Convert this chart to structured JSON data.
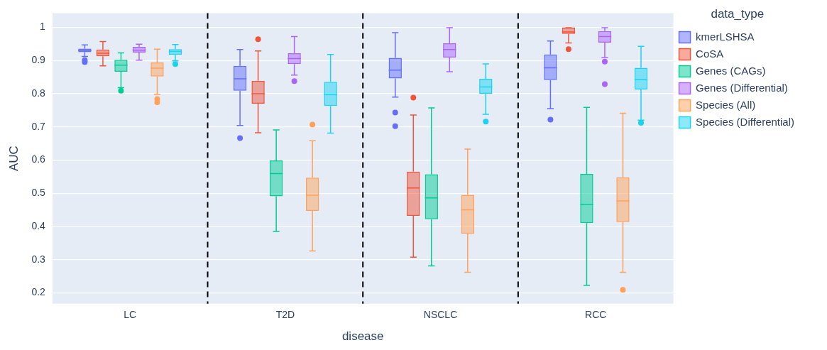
{
  "chart_data": {
    "type": "box",
    "xlabel": "disease",
    "ylabel": "AUC",
    "legend_title": "data_type",
    "legend": "right",
    "grid": "y",
    "categories": [
      "LC",
      "T2D",
      "NSCLC",
      "RCC"
    ],
    "ylim": [
      0.167,
      1.043
    ],
    "yticks": [
      0.2,
      0.3,
      0.4,
      0.5,
      0.6,
      0.7,
      0.8,
      0.9,
      1
    ],
    "series": [
      {
        "name": "kmerLSHSA",
        "color": "#636efa",
        "boxes": [
          {
            "low": 0.912,
            "q1": 0.925,
            "median": 0.93,
            "q3": 0.936,
            "high": 0.947,
            "outliers": [
              0.901,
              0.895
            ]
          },
          {
            "low": 0.704,
            "q1": 0.809,
            "median": 0.845,
            "q3": 0.884,
            "high": 0.933,
            "outliers": [
              0.666
            ]
          },
          {
            "low": 0.79,
            "q1": 0.846,
            "median": 0.871,
            "q3": 0.908,
            "high": 0.984,
            "outliers": [
              0.743,
              0.702
            ]
          },
          {
            "low": 0.755,
            "q1": 0.841,
            "median": 0.878,
            "q3": 0.918,
            "high": 0.959,
            "outliers": [
              0.722
            ]
          }
        ]
      },
      {
        "name": "CoSA",
        "color": "#ef553b",
        "boxes": [
          {
            "low": 0.884,
            "q1": 0.913,
            "median": 0.922,
            "q3": 0.933,
            "high": 0.957
          },
          {
            "low": 0.682,
            "q1": 0.77,
            "median": 0.8,
            "q3": 0.839,
            "high": 0.929,
            "outliers": [
              0.964
            ]
          },
          {
            "low": 0.307,
            "q1": 0.432,
            "median": 0.516,
            "q3": 0.565,
            "high": 0.736,
            "outliers": [
              0.788
            ]
          },
          {
            "low": 0.953,
            "q1": 0.98,
            "median": 0.986,
            "q3": 0.999,
            "high": 0.999,
            "outliers": [
              0.934
            ]
          }
        ]
      },
      {
        "name": "Genes (CAGs)",
        "color": "#00cc96",
        "boxes": [
          {
            "low": 0.818,
            "q1": 0.866,
            "median": 0.886,
            "q3": 0.902,
            "high": 0.923,
            "outliers": [
              0.809
            ]
          },
          {
            "low": 0.385,
            "q1": 0.491,
            "median": 0.559,
            "q3": 0.599,
            "high": 0.691
          },
          {
            "low": 0.281,
            "q1": 0.422,
            "median": 0.486,
            "q3": 0.557,
            "high": 0.757
          },
          {
            "low": 0.222,
            "q1": 0.41,
            "median": 0.466,
            "q3": 0.558,
            "high": 0.759
          }
        ]
      },
      {
        "name": "Genes (Differential)",
        "color": "#ab63fa",
        "boxes": [
          {
            "low": 0.901,
            "q1": 0.924,
            "median": 0.931,
            "q3": 0.941,
            "high": 0.949
          },
          {
            "low": 0.856,
            "q1": 0.889,
            "median": 0.906,
            "q3": 0.922,
            "high": 0.972,
            "outliers": [
              0.838
            ]
          },
          {
            "low": 0.866,
            "q1": 0.909,
            "median": 0.933,
            "q3": 0.952,
            "high": 0.999
          },
          {
            "low": 0.909,
            "q1": 0.954,
            "median": 0.972,
            "q3": 0.989,
            "high": 0.999,
            "outliers": [
              0.897,
              0.829
            ]
          }
        ]
      },
      {
        "name": "Species (All)",
        "color": "#ffa15a",
        "boxes": [
          {
            "low": 0.798,
            "q1": 0.852,
            "median": 0.877,
            "q3": 0.894,
            "high": 0.934,
            "outliers": [
              0.784,
              0.774
            ]
          },
          {
            "low": 0.326,
            "q1": 0.447,
            "median": 0.494,
            "q3": 0.547,
            "high": 0.658,
            "outliers": [
              0.707
            ]
          },
          {
            "low": 0.262,
            "q1": 0.378,
            "median": 0.45,
            "q3": 0.495,
            "high": 0.633
          },
          {
            "low": 0.262,
            "q1": 0.413,
            "median": 0.477,
            "q3": 0.548,
            "high": 0.741,
            "outliers": [
              0.209
            ]
          }
        ]
      },
      {
        "name": "Species (Differential)",
        "color": "#19d3f3",
        "boxes": [
          {
            "low": 0.899,
            "q1": 0.917,
            "median": 0.927,
            "q3": 0.934,
            "high": 0.948,
            "outliers": [
              0.889
            ]
          },
          {
            "low": 0.681,
            "q1": 0.763,
            "median": 0.797,
            "q3": 0.836,
            "high": 0.918
          },
          {
            "low": 0.738,
            "q1": 0.8,
            "median": 0.82,
            "q3": 0.845,
            "high": 0.89,
            "outliers": [
              0.716
            ]
          },
          {
            "low": 0.72,
            "q1": 0.813,
            "median": 0.842,
            "q3": 0.878,
            "high": 0.943,
            "outliers": [
              0.712
            ]
          }
        ]
      }
    ]
  }
}
